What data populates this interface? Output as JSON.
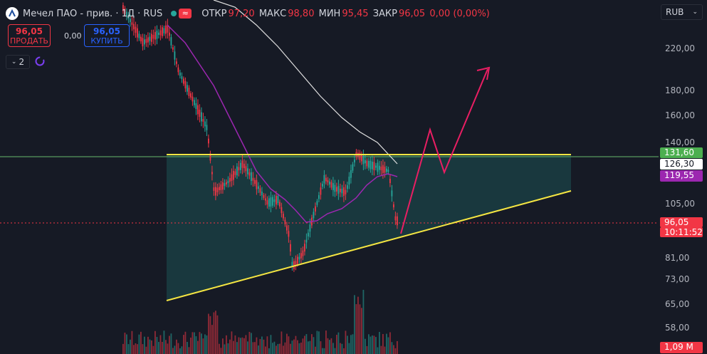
{
  "header": {
    "symbol_title": "Мечел ПАО - прив. · 1Д · RUS",
    "ohlc": {
      "open_label": "ОТКР",
      "open": "97,20",
      "high_label": "МАКС",
      "high": "98,80",
      "low_label": "МИН",
      "low": "95,45",
      "close_label": "ЗАКР",
      "close": "96,05",
      "change": "0,00 (0,00%)"
    }
  },
  "trade": {
    "sell_price": "96,05",
    "sell_label": "ПРОДАТЬ",
    "spread": "0,00",
    "buy_price": "96,05",
    "buy_label": "КУПИТЬ"
  },
  "controls": {
    "indicators_count": "2"
  },
  "currency": {
    "selected": "RUB"
  },
  "axis": {
    "ticks": [
      "220,00",
      "180,00",
      "160,00",
      "140,00",
      "105,00",
      "81,00",
      "73,00",
      "65,00",
      "58,00"
    ]
  },
  "price_labels": {
    "resistance": "131,60",
    "ma_white": "126,30",
    "ma_purple": "119,55",
    "last_price": "96,05",
    "countdown": "10:11:52",
    "volume": "1,09 M"
  },
  "colors": {
    "background": "#161a25",
    "up": "#26a69a",
    "down": "#f23645",
    "trendline": "#f5e642",
    "projection": "#e91e63",
    "ma_purple": "#9c27b0",
    "ma_white": "#e0e0e0",
    "resistance_badge": "#4caf50",
    "purple_badge": "#9c27b0"
  },
  "chart_data": {
    "type": "candlestick",
    "shape": "ascending-triangle",
    "resistance_price": 131.6,
    "last_price": 96.05,
    "projection": "up-arrow"
  }
}
